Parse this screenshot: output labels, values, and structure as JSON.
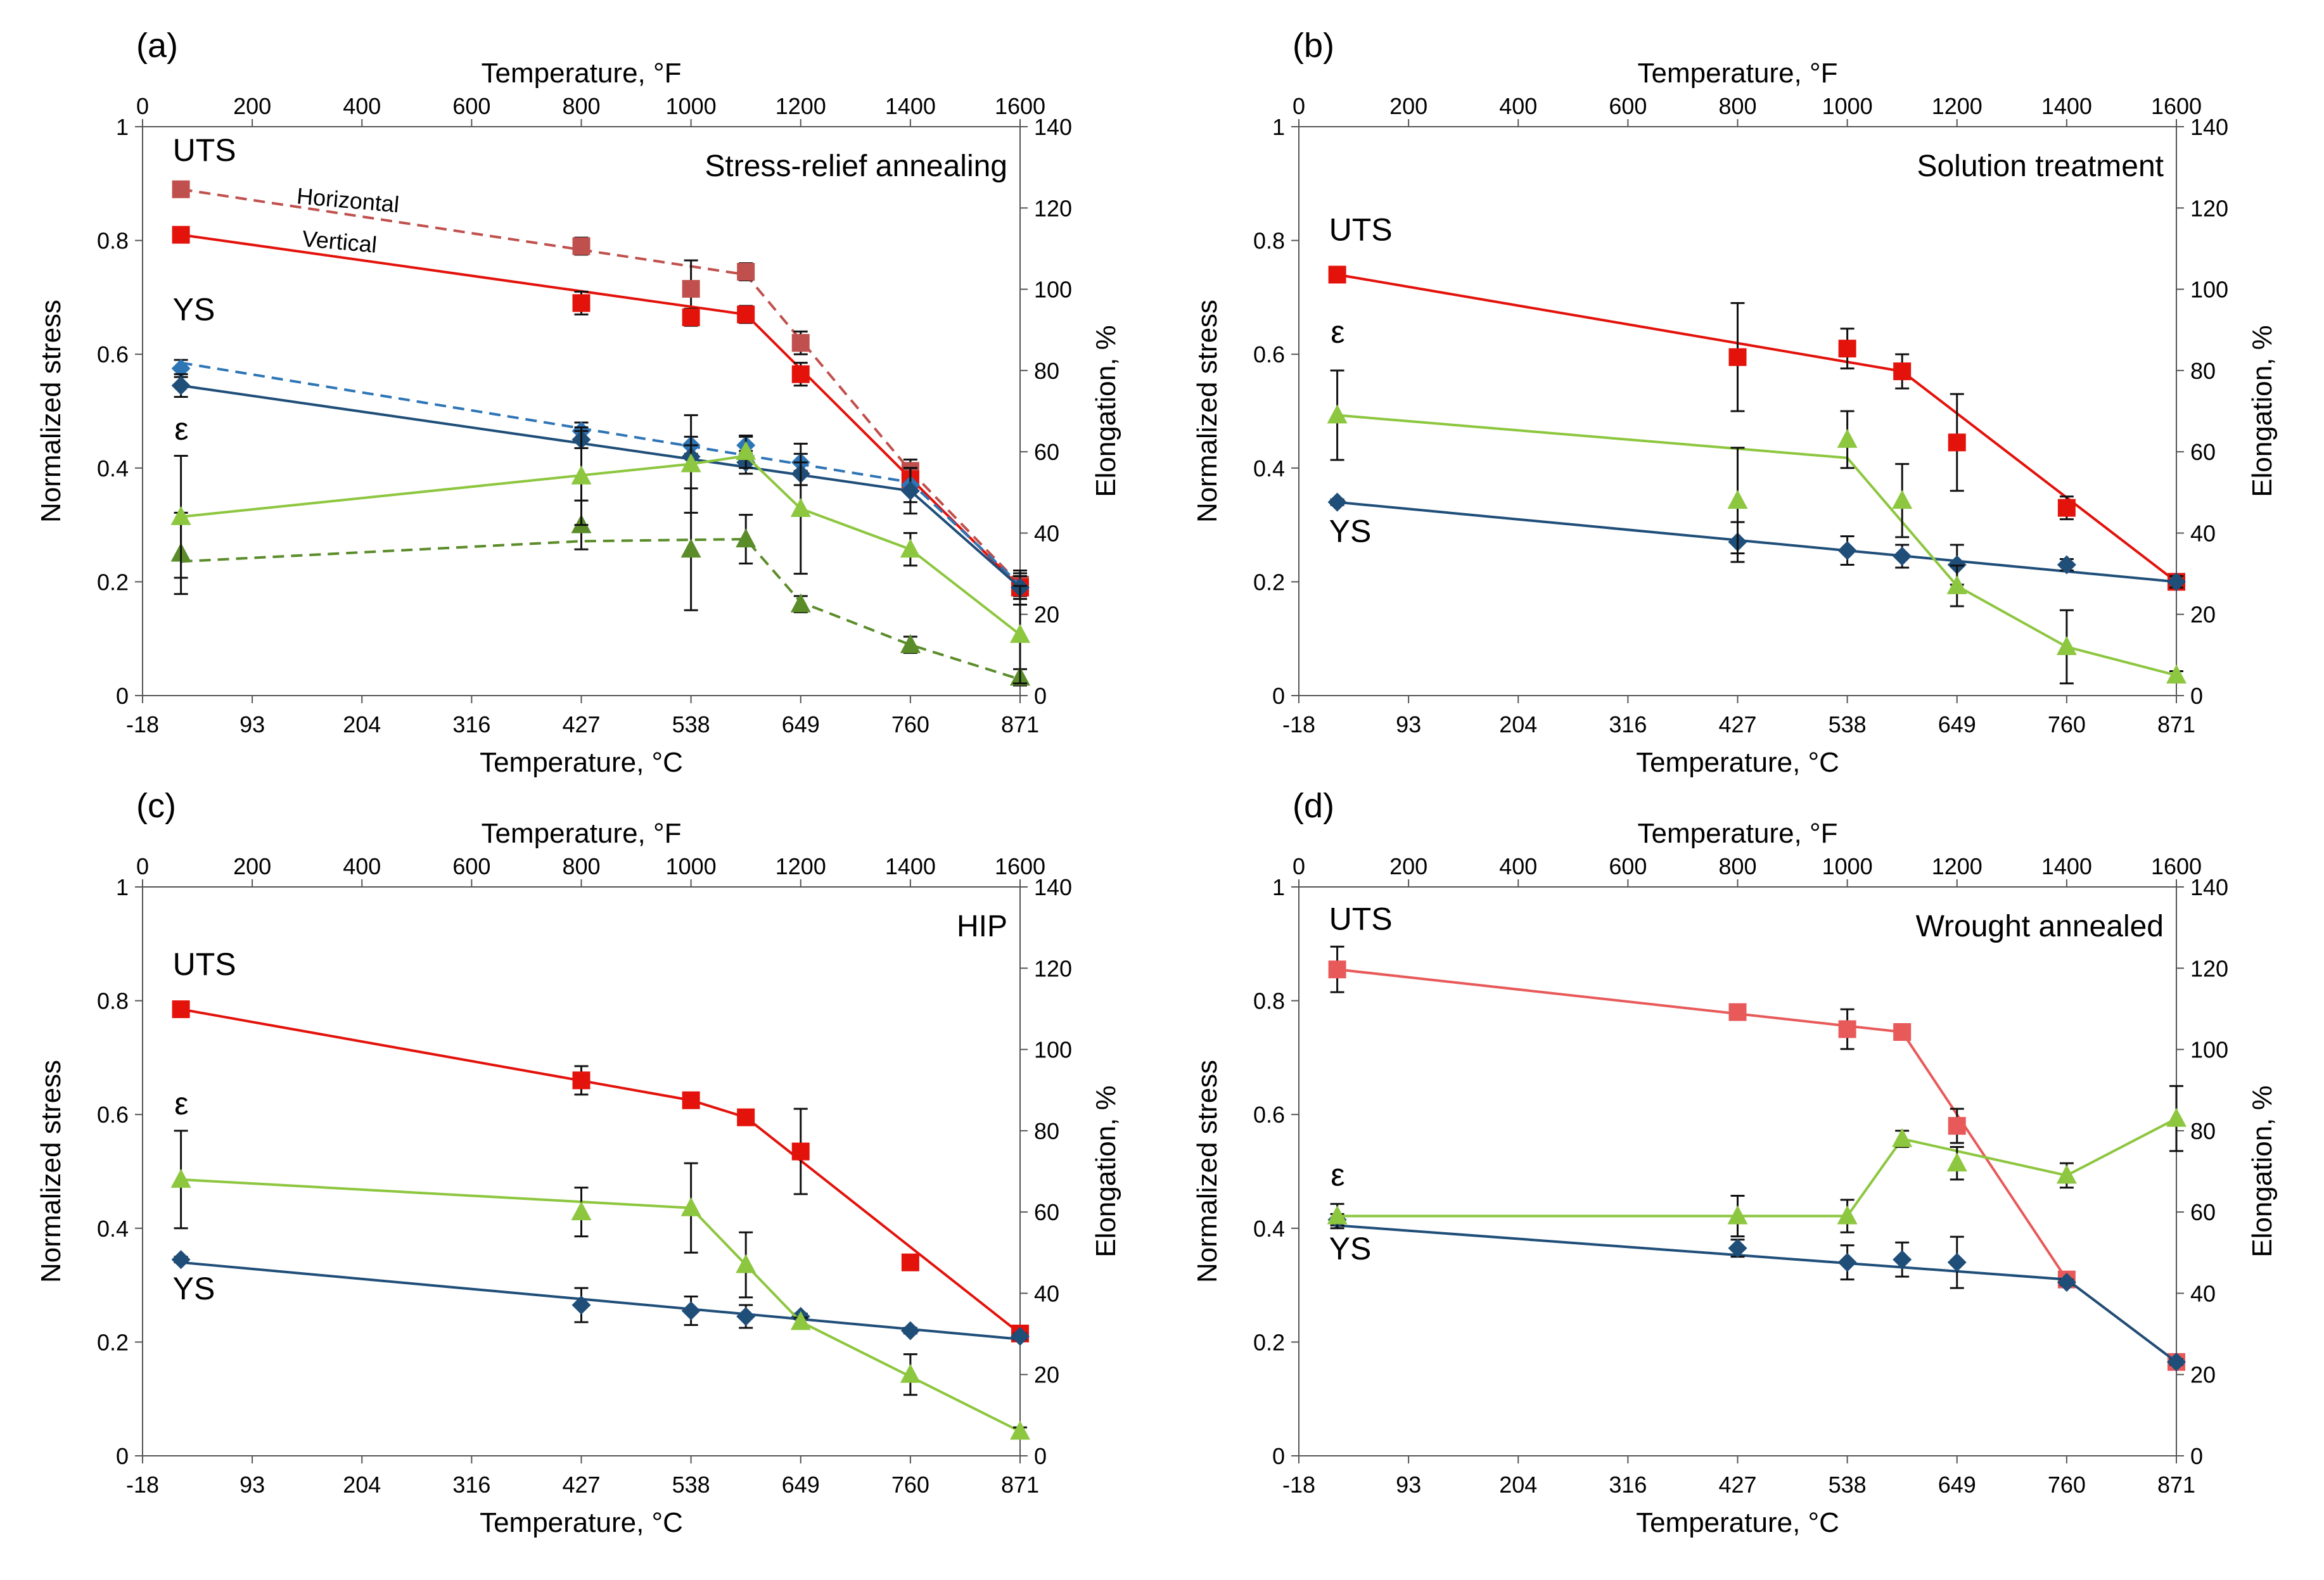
{
  "chart_data": [
    {
      "panel_label": "(a)",
      "title": "Stress-relief annealing",
      "type": "line",
      "top_axis": {
        "label": "Temperature, °F",
        "ticks": [
          0,
          200,
          400,
          600,
          800,
          1000,
          1200,
          1400,
          1600
        ],
        "range": [
          0,
          1600
        ]
      },
      "bottom_axis": {
        "label": "Temperature, °C",
        "ticks": [
          "-18",
          "93",
          "204",
          "316",
          "427",
          "538",
          "649",
          "760",
          "871"
        ]
      },
      "left_axis": {
        "label": "Normalized stress",
        "ticks": [
          "0",
          "0.2",
          "0.4",
          "0.6",
          "0.8",
          "1"
        ],
        "range": [
          0,
          1
        ]
      },
      "right_axis": {
        "label": "Elongation, %",
        "ticks": [
          0,
          20,
          40,
          60,
          80,
          100,
          120,
          140
        ],
        "range": [
          0,
          140
        ]
      },
      "annotations": [
        {
          "text": "UTS",
          "x": 55,
          "y": 0.94
        },
        {
          "text": "YS",
          "x": 55,
          "y": 0.66
        },
        {
          "text": "ε",
          "x": 58,
          "y": 0.45
        }
      ],
      "line_notes": [
        {
          "text": "Horizontal",
          "x": 280,
          "y": 0.865,
          "angle": 5
        },
        {
          "text": "Vertical",
          "x": 290,
          "y": 0.79,
          "angle": 5
        }
      ],
      "series": [
        {
          "name": "UTS Horizontal",
          "axis": "left",
          "color": "#c0504d",
          "marker": "square",
          "dash": true,
          "x": [
            70,
            800,
            1000,
            1100,
            1200,
            1400,
            1600
          ],
          "y": [
            0.89,
            0.79,
            0.715,
            0.745,
            0.62,
            0.395,
            0.195
          ],
          "err": [
            0.01,
            0.015,
            0.05,
            0.015,
            0.02,
            0.02,
            0.02
          ],
          "line": {
            "x": [
              70,
              1100,
              1400,
              1600
            ],
            "y": [
              0.89,
              0.74,
              0.395,
              0.195
            ]
          }
        },
        {
          "name": "UTS Vertical",
          "axis": "left",
          "color": "#e3120b",
          "marker": "square",
          "dash": false,
          "x": [
            70,
            800,
            1000,
            1100,
            1200,
            1400,
            1600
          ],
          "y": [
            0.81,
            0.69,
            0.665,
            0.67,
            0.565,
            0.38,
            0.19
          ],
          "err": [
            0.01,
            0.02,
            0.015,
            0.015,
            0.02,
            0.02,
            0.02
          ],
          "line": {
            "x": [
              70,
              1100,
              1600
            ],
            "y": [
              0.81,
              0.67,
              0.19
            ]
          }
        },
        {
          "name": "YS Horizontal",
          "axis": "left",
          "color": "#2e75b6",
          "marker": "diamond",
          "dash": true,
          "x": [
            70,
            800,
            1000,
            1100,
            1200,
            1400,
            1600
          ],
          "y": [
            0.575,
            0.465,
            0.44,
            0.44,
            0.41,
            0.37,
            0.19
          ],
          "err": [
            0.015,
            0.015,
            0.015,
            0.015,
            0.015,
            0.03,
            0.02
          ],
          "line": {
            "x": [
              70,
              1400,
              1600
            ],
            "y": [
              0.585,
              0.375,
              0.195
            ]
          }
        },
        {
          "name": "YS Vertical",
          "axis": "left",
          "color": "#1f4e79",
          "marker": "diamond",
          "dash": false,
          "x": [
            70,
            800,
            1000,
            1100,
            1200,
            1400,
            1600
          ],
          "y": [
            0.545,
            0.45,
            0.42,
            0.41,
            0.39,
            0.36,
            0.19
          ],
          "err": [
            0.02,
            0.015,
            0.02,
            0.02,
            0.02,
            0.04,
            0.03
          ],
          "line": {
            "x": [
              70,
              1400,
              1600
            ],
            "y": [
              0.545,
              0.36,
              0.19
            ]
          }
        },
        {
          "name": "Elongation Horizontal",
          "axis": "right",
          "color": "#5b8c2a",
          "marker": "triangle",
          "dash": true,
          "x": [
            70,
            800,
            1000,
            1100,
            1200,
            1400,
            1600
          ],
          "y": [
            35,
            42,
            36,
            38.5,
            22.5,
            12.5,
            4.5
          ],
          "err": [
            10,
            6,
            15,
            6,
            2,
            2,
            2
          ],
          "line": {
            "x": [
              70,
              800,
              1100,
              1200,
              1400,
              1600
            ],
            "y": [
              33,
              38,
              38.5,
              23,
              12.5,
              4
            ]
          }
        },
        {
          "name": "Elongation Vertical",
          "axis": "right",
          "color": "#8dc63f",
          "marker": "triangle",
          "dash": false,
          "x": [
            70,
            800,
            1000,
            1100,
            1200,
            1400,
            1600
          ],
          "y": [
            44,
            54,
            57,
            60,
            46,
            36,
            15
          ],
          "err": [
            15,
            12,
            12,
            4,
            16,
            4,
            12
          ],
          "line": {
            "x": [
              70,
              1000,
              1100,
              1200,
              1400,
              1600
            ],
            "y": [
              44,
              57,
              59,
              46,
              36,
              15
            ]
          }
        }
      ]
    },
    {
      "panel_label": "(b)",
      "title": "Solution treatment",
      "type": "line",
      "top_axis": {
        "label": "Temperature, °F",
        "ticks": [
          0,
          200,
          400,
          600,
          800,
          1000,
          1200,
          1400,
          1600
        ],
        "range": [
          0,
          1600
        ]
      },
      "bottom_axis": {
        "label": "Temperature, °C",
        "ticks": [
          "-18",
          "93",
          "204",
          "316",
          "427",
          "538",
          "649",
          "760",
          "871"
        ]
      },
      "left_axis": {
        "label": "Normalized stress",
        "ticks": [
          "0",
          "0.2",
          "0.4",
          "0.6",
          "0.8",
          "1"
        ],
        "range": [
          0,
          1
        ]
      },
      "right_axis": {
        "label": "Elongation, %",
        "ticks": [
          0,
          20,
          40,
          60,
          80,
          100,
          120,
          140
        ],
        "range": [
          0,
          140
        ]
      },
      "annotations": [
        {
          "text": "UTS",
          "x": 55,
          "y": 0.8
        },
        {
          "text": "ε",
          "x": 58,
          "y": 0.62
        },
        {
          "text": "YS",
          "x": 55,
          "y": 0.27
        }
      ],
      "line_notes": [],
      "series": [
        {
          "name": "UTS",
          "axis": "left",
          "color": "#e3120b",
          "marker": "square",
          "dash": false,
          "x": [
            70,
            800,
            1000,
            1100,
            1200,
            1400,
            1600
          ],
          "y": [
            0.74,
            0.595,
            0.61,
            0.57,
            0.445,
            0.33,
            0.2
          ],
          "err": [
            0.01,
            0.095,
            0.035,
            0.03,
            0.085,
            0.02,
            0.01
          ],
          "line": {
            "x": [
              70,
              1100,
              1600
            ],
            "y": [
              0.74,
              0.57,
              0.2
            ]
          }
        },
        {
          "name": "YS",
          "axis": "left",
          "color": "#1f4e79",
          "marker": "diamond",
          "dash": false,
          "x": [
            70,
            800,
            1000,
            1100,
            1200,
            1400,
            1600
          ],
          "y": [
            0.34,
            0.27,
            0.255,
            0.245,
            0.23,
            0.23,
            0.2
          ],
          "err": [
            0.005,
            0.035,
            0.025,
            0.02,
            0.035,
            0.01,
            0.01
          ],
          "line": {
            "x": [
              70,
              1600
            ],
            "y": [
              0.34,
              0.2
            ]
          }
        },
        {
          "name": "Elongation",
          "axis": "right",
          "color": "#8dc63f",
          "marker": "triangle",
          "dash": false,
          "x": [
            70,
            800,
            1000,
            1100,
            1200,
            1400,
            1600
          ],
          "y": [
            69,
            48,
            63,
            48,
            27,
            12,
            5
          ],
          "err": [
            11,
            13,
            7,
            9,
            5,
            9,
            1
          ],
          "line": {
            "x": [
              70,
              1000,
              1200,
              1400,
              1600
            ],
            "y": [
              69,
              58.5,
              27,
              12,
              5
            ]
          }
        }
      ]
    },
    {
      "panel_label": "(c)",
      "title": "HIP",
      "type": "line",
      "top_axis": {
        "label": "Temperature, °F",
        "ticks": [
          0,
          200,
          400,
          600,
          800,
          1000,
          1200,
          1400,
          1600
        ],
        "range": [
          0,
          1600
        ]
      },
      "bottom_axis": {
        "label": "Temperature, °C",
        "ticks": [
          "-18",
          "93",
          "204",
          "316",
          "427",
          "538",
          "649",
          "760",
          "871"
        ]
      },
      "left_axis": {
        "label": "Normalized stress",
        "ticks": [
          "0",
          "0.2",
          "0.4",
          "0.6",
          "0.8",
          "1"
        ],
        "range": [
          0,
          1
        ]
      },
      "right_axis": {
        "label": "Elongation, %",
        "ticks": [
          0,
          20,
          40,
          60,
          80,
          100,
          120,
          140
        ],
        "range": [
          0,
          140
        ]
      },
      "annotations": [
        {
          "text": "UTS",
          "x": 55,
          "y": 0.845
        },
        {
          "text": "ε",
          "x": 58,
          "y": 0.6
        },
        {
          "text": "YS",
          "x": 55,
          "y": 0.275
        }
      ],
      "line_notes": [],
      "series": [
        {
          "name": "UTS",
          "axis": "left",
          "color": "#e3120b",
          "marker": "square",
          "dash": false,
          "x": [
            70,
            800,
            1000,
            1100,
            1200,
            1400,
            1600
          ],
          "y": [
            0.785,
            0.66,
            0.625,
            0.595,
            0.535,
            0.34,
            0.215
          ],
          "err": [
            0.005,
            0.025,
            0.01,
            0.01,
            0.075,
            0.005,
            0.005
          ],
          "line": {
            "x": [
              70,
              1000,
              1100,
              1600
            ],
            "y": [
              0.785,
              0.625,
              0.595,
              0.215
            ]
          }
        },
        {
          "name": "YS",
          "axis": "left",
          "color": "#1f4e79",
          "marker": "diamond",
          "dash": false,
          "x": [
            70,
            800,
            1000,
            1100,
            1200,
            1400,
            1600
          ],
          "y": [
            0.345,
            0.265,
            0.255,
            0.245,
            0.245,
            0.22,
            0.21
          ],
          "err": [
            0.005,
            0.03,
            0.025,
            0.02,
            0.005,
            0.005,
            0.005
          ],
          "line": {
            "x": [
              70,
              1600
            ],
            "y": [
              0.34,
              0.205
            ]
          }
        },
        {
          "name": "Elongation",
          "axis": "right",
          "color": "#8dc63f",
          "marker": "triangle",
          "dash": false,
          "x": [
            70,
            800,
            1000,
            1100,
            1200,
            1400,
            1600
          ],
          "y": [
            68,
            60,
            61,
            47,
            33,
            20,
            6
          ],
          "err": [
            12,
            6,
            11,
            8,
            1,
            5,
            1
          ],
          "line": {
            "x": [
              70,
              1000,
              1200,
              1600
            ],
            "y": [
              68,
              61,
              33,
              6
            ]
          }
        }
      ]
    },
    {
      "panel_label": "(d)",
      "title": "Wrought annealed",
      "type": "line",
      "top_axis": {
        "label": "Temperature, °F",
        "ticks": [
          0,
          200,
          400,
          600,
          800,
          1000,
          1200,
          1400,
          1600
        ],
        "range": [
          0,
          1600
        ]
      },
      "bottom_axis": {
        "label": "Temperature, °C",
        "ticks": [
          "-18",
          "93",
          "204",
          "316",
          "427",
          "538",
          "649",
          "760",
          "871"
        ]
      },
      "left_axis": {
        "label": "Normalized stress",
        "ticks": [
          "0",
          "0.2",
          "0.4",
          "0.6",
          "0.8",
          "1"
        ],
        "range": [
          0,
          1
        ]
      },
      "right_axis": {
        "label": "Elongation, %",
        "ticks": [
          0,
          20,
          40,
          60,
          80,
          100,
          120,
          140
        ],
        "range": [
          0,
          140
        ]
      },
      "annotations": [
        {
          "text": "UTS",
          "x": 55,
          "y": 0.925
        },
        {
          "text": "ε",
          "x": 58,
          "y": 0.475
        },
        {
          "text": "YS",
          "x": 55,
          "y": 0.345
        }
      ],
      "line_notes": [],
      "series": [
        {
          "name": "UTS",
          "axis": "left",
          "color": "#e85a5a",
          "marker": "square",
          "dash": false,
          "x": [
            70,
            800,
            1000,
            1100,
            1200,
            1400,
            1600
          ],
          "y": [
            0.855,
            0.78,
            0.75,
            0.745,
            0.58,
            0.31,
            0.165
          ],
          "err": [
            0.04,
            0.005,
            0.035,
            0.005,
            0.03,
            0.005,
            0.005
          ],
          "line": {
            "x": [
              70,
              1100,
              1400,
              1600
            ],
            "y": [
              0.855,
              0.745,
              0.31,
              0.165
            ]
          }
        },
        {
          "name": "YS",
          "axis": "left",
          "color": "#1f4e79",
          "marker": "diamond",
          "dash": false,
          "x": [
            70,
            800,
            1000,
            1100,
            1200,
            1400,
            1600
          ],
          "y": [
            0.415,
            0.365,
            0.34,
            0.345,
            0.34,
            0.305,
            0.165
          ],
          "err": [
            0.01,
            0.015,
            0.03,
            0.03,
            0.045,
            0.005,
            0.005
          ],
          "line": {
            "x": [
              70,
              1400,
              1600
            ],
            "y": [
              0.405,
              0.31,
              0.165
            ]
          }
        },
        {
          "name": "Elongation",
          "axis": "right",
          "color": "#8dc63f",
          "marker": "triangle",
          "dash": false,
          "x": [
            70,
            800,
            1000,
            1100,
            1200,
            1400,
            1600
          ],
          "y": [
            59,
            59,
            59,
            78,
            72,
            69,
            83
          ],
          "err": [
            3,
            5,
            4,
            2,
            4,
            3,
            8
          ],
          "line": {
            "x": [
              70,
              1000,
              1100,
              1200,
              1400,
              1600
            ],
            "y": [
              59,
              59,
              78,
              75,
              69,
              83
            ]
          }
        }
      ]
    }
  ]
}
